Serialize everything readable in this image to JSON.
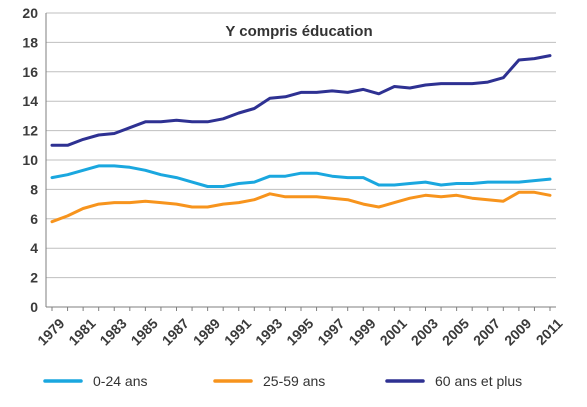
{
  "chart_data": {
    "type": "line",
    "title": "Y compris éducation",
    "xlabel": "",
    "ylabel": "",
    "ylim": [
      0,
      20
    ],
    "y_ticks": [
      "0",
      "2",
      "4",
      "6",
      "8",
      "10",
      "12",
      "14",
      "16",
      "18",
      "20"
    ],
    "x": [
      1979,
      1980,
      1981,
      1982,
      1983,
      1984,
      1985,
      1986,
      1987,
      1988,
      1989,
      1990,
      1991,
      1992,
      1993,
      1994,
      1995,
      1996,
      1997,
      1998,
      1999,
      2000,
      2001,
      2002,
      2003,
      2004,
      2005,
      2006,
      2007,
      2008,
      2009,
      2010,
      2011
    ],
    "x_tick_labels": [
      "1979",
      "1981",
      "1983",
      "1985",
      "1987",
      "1989",
      "1991",
      "1993",
      "1995",
      "1997",
      "1999",
      "2001",
      "2003",
      "2005",
      "2007",
      "2009",
      "2011"
    ],
    "grid": "horizontal",
    "legend_position": "bottom",
    "series": [
      {
        "name": "0-24 ans",
        "color": "#1AA7DF",
        "values": [
          8.8,
          9.0,
          9.3,
          9.6,
          9.6,
          9.5,
          9.3,
          9.0,
          8.8,
          8.5,
          8.2,
          8.2,
          8.4,
          8.5,
          8.9,
          8.9,
          9.1,
          9.1,
          8.9,
          8.8,
          8.8,
          8.3,
          8.3,
          8.4,
          8.5,
          8.3,
          8.4,
          8.4,
          8.5,
          8.5,
          8.5,
          8.6,
          8.7
        ]
      },
      {
        "name": "25-59 ans",
        "color": "#F7941D",
        "values": [
          5.8,
          6.2,
          6.7,
          7.0,
          7.1,
          7.1,
          7.2,
          7.1,
          7.0,
          6.8,
          6.8,
          7.0,
          7.1,
          7.3,
          7.7,
          7.5,
          7.5,
          7.5,
          7.4,
          7.3,
          7.0,
          6.8,
          7.1,
          7.4,
          7.6,
          7.5,
          7.6,
          7.4,
          7.3,
          7.2,
          7.8,
          7.8,
          7.6
        ]
      },
      {
        "name": "60 ans et plus",
        "color": "#2E3192",
        "values": [
          11.0,
          11.0,
          11.4,
          11.7,
          11.8,
          12.2,
          12.6,
          12.6,
          12.7,
          12.6,
          12.6,
          12.8,
          13.2,
          13.5,
          14.2,
          14.3,
          14.6,
          14.6,
          14.7,
          14.6,
          14.8,
          14.5,
          15.0,
          14.9,
          15.1,
          15.2,
          15.2,
          15.2,
          15.3,
          15.6,
          16.8,
          16.9,
          17.1
        ]
      }
    ]
  }
}
